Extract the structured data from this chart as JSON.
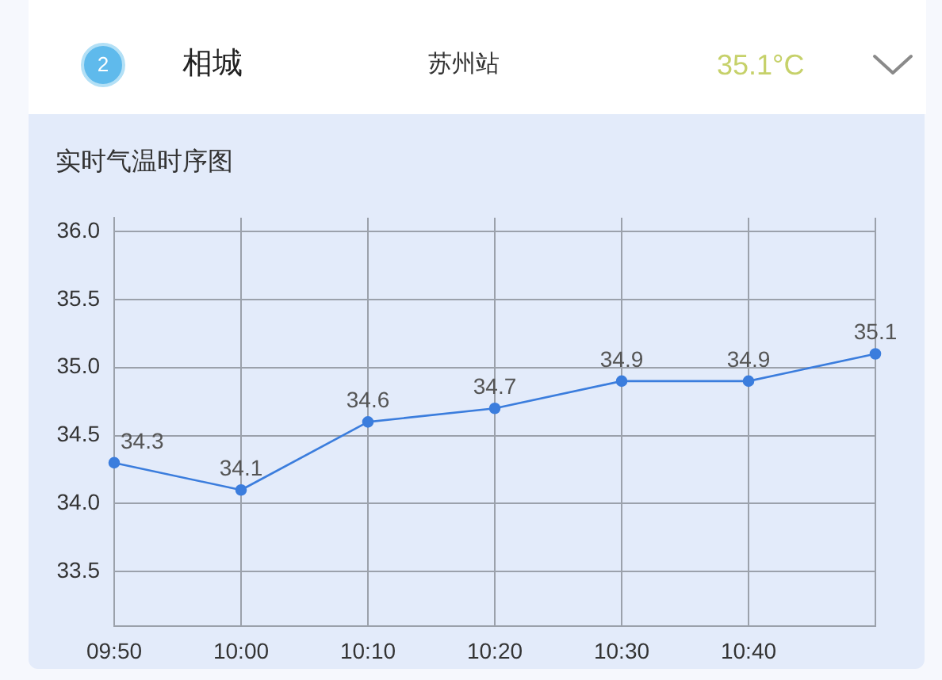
{
  "chart_data": {
    "type": "line",
    "title": "实时气温时序图",
    "annotations": [
      "2",
      "相城",
      "苏州站",
      "35.1°C"
    ],
    "categories": [
      "09:50",
      "10:00",
      "10:10",
      "10:20",
      "10:30",
      "10:40",
      null
    ],
    "series": [
      {
        "color": "#3b7ddd",
        "values": [
          34.3,
          34.1,
          34.6,
          34.7,
          34.9,
          34.9,
          35.1
        ]
      }
    ],
    "ylim": [
      33.1,
      36.1
    ],
    "yticks": [
      33.5,
      {
        "value": 34,
        "label": "34.0"
      },
      34.5,
      {
        "value": 35,
        "label": "35.0"
      },
      35.5,
      {
        "value": 36,
        "label": "36.0"
      }
    ],
    "grid": true,
    "legend": false,
    "marker": "circle",
    "line_style": "solid",
    "data_labels": true
  }
}
